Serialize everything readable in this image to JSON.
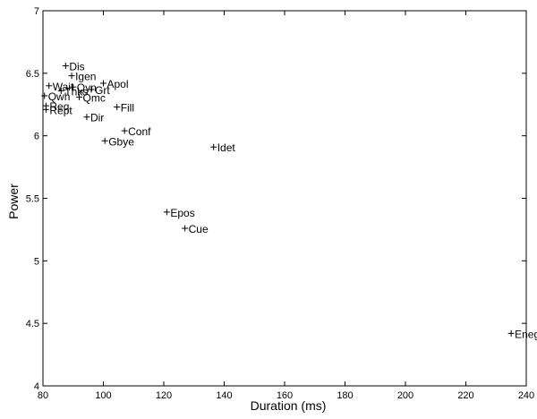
{
  "chart_data": {
    "type": "scatter",
    "xlabel": "Duration (ms)",
    "ylabel": "Power",
    "xlim": [
      80,
      240
    ],
    "ylim": [
      4,
      7
    ],
    "grid": false,
    "x_ticks": [
      "80",
      "100",
      "120",
      "140",
      "160",
      "180",
      "200",
      "220",
      "240"
    ],
    "y_ticks": [
      "4",
      "4.5",
      "5",
      "5.5",
      "6",
      "6.5",
      "7"
    ],
    "points": [
      {
        "label": "Dis",
        "x": 87.5,
        "y": 6.56
      },
      {
        "label": "Igen",
        "x": 89.5,
        "y": 6.48
      },
      {
        "label": "Wait",
        "x": 82.0,
        "y": 6.4
      },
      {
        "label": "Qyn",
        "x": 90.0,
        "y": 6.39
      },
      {
        "label": "Thks",
        "x": 86.0,
        "y": 6.36
      },
      {
        "label": "Grt",
        "x": 96.0,
        "y": 6.37
      },
      {
        "label": "Apol",
        "x": 100.0,
        "y": 6.42
      },
      {
        "label": "Qwh",
        "x": 80.5,
        "y": 6.32
      },
      {
        "label": "Qmc",
        "x": 92.0,
        "y": 6.31
      },
      {
        "label": "Req",
        "x": 81.0,
        "y": 6.24
      },
      {
        "label": "Rept",
        "x": 81.0,
        "y": 6.21
      },
      {
        "label": "Fill",
        "x": 104.5,
        "y": 6.23
      },
      {
        "label": "Dir",
        "x": 94.5,
        "y": 6.15
      },
      {
        "label": "Conf",
        "x": 107.0,
        "y": 6.04
      },
      {
        "label": "Gbye",
        "x": 100.5,
        "y": 5.96
      },
      {
        "label": "Idet",
        "x": 136.5,
        "y": 5.91
      },
      {
        "label": "Epos",
        "x": 121.0,
        "y": 5.39
      },
      {
        "label": "Cue",
        "x": 127.0,
        "y": 5.26
      },
      {
        "label": "Eneg",
        "x": 235.0,
        "y": 4.42
      }
    ]
  }
}
